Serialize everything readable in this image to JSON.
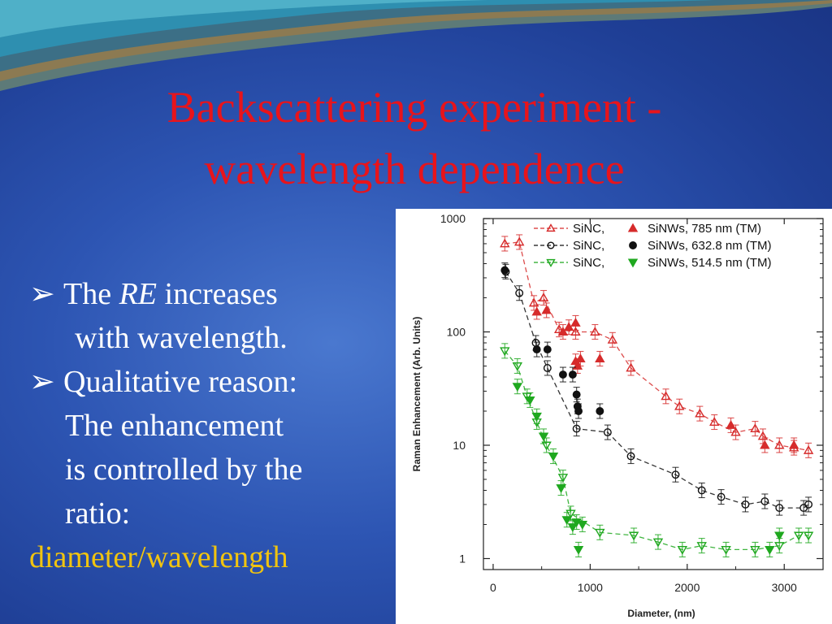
{
  "slide": {
    "title_line1": "Backscattering experiment -",
    "title_line2": "wavelength dependence",
    "bullets": {
      "b1_pre": "The ",
      "b1_em": "RE",
      "b1_post": " increases",
      "b1_cont": "with wavelength.",
      "b2": "Qualitative reason:",
      "b2_cont1": "The enhancement",
      "b2_cont2": "is controlled by the",
      "b2_cont3": "ratio:",
      "highlight": "diameter/wavelength"
    },
    "colors": {
      "title": "#e8141b",
      "highlight": "#f1c40f",
      "bullet_text": "#ffffff"
    }
  },
  "chart_data": {
    "type": "scatter",
    "ylog": true,
    "xlim": [
      -100,
      3400
    ],
    "ylim": [
      0.8,
      1000
    ],
    "xlabel": "Diameter, (nm)",
    "ylabel": "Raman Enhancement (Arb. Units)",
    "xticks": [
      0,
      1000,
      2000,
      3000
    ],
    "xtick_labels": [
      "0",
      "1000",
      "2000",
      "3000"
    ],
    "yticks": [
      1,
      10,
      100,
      1000
    ],
    "ytick_labels": [
      "1",
      "10",
      "100",
      "1000"
    ],
    "legend_position": "top-right",
    "legend": [
      {
        "sinc_label": "SiNC,",
        "sinw_label": "SiNWs, 785 nm (TM)",
        "color": "#d62b2b"
      },
      {
        "sinc_label": "SiNC,",
        "sinw_label": "SiNWs, 632.8 nm (TM)",
        "color": "#111111"
      },
      {
        "sinc_label": "SiNC,",
        "sinw_label": "SiNWs, 514.5 nm (TM)",
        "color": "#1fa81f"
      }
    ],
    "series": [
      {
        "marker": "triangle-up-open",
        "color": "#d62b2b",
        "dashed_line": true,
        "points": [
          [
            120,
            600
          ],
          [
            270,
            620
          ],
          [
            420,
            180
          ],
          [
            520,
            200
          ],
          [
            680,
            105
          ],
          [
            850,
            100
          ],
          [
            1050,
            100
          ],
          [
            1230,
            85
          ],
          [
            1420,
            48
          ],
          [
            1780,
            27
          ],
          [
            1920,
            22
          ],
          [
            2130,
            19
          ],
          [
            2280,
            16
          ],
          [
            2500,
            13
          ],
          [
            2700,
            14
          ],
          [
            2780,
            12
          ],
          [
            2950,
            10
          ],
          [
            3100,
            9.5
          ],
          [
            3250,
            9
          ]
        ]
      },
      {
        "marker": "triangle-up-filled",
        "color": "#d62b2b",
        "dashed_line": false,
        "points": [
          [
            450,
            150
          ],
          [
            550,
            155
          ],
          [
            720,
            100
          ],
          [
            780,
            110
          ],
          [
            850,
            120
          ],
          [
            850,
            55
          ],
          [
            870,
            50
          ],
          [
            900,
            58
          ],
          [
            1100,
            58
          ],
          [
            2450,
            15
          ],
          [
            2800,
            10
          ],
          [
            3100,
            10
          ]
        ]
      },
      {
        "marker": "circle-open",
        "color": "#111111",
        "dashed_line": true,
        "points": [
          [
            130,
            340
          ],
          [
            270,
            220
          ],
          [
            440,
            80
          ],
          [
            560,
            48
          ],
          [
            860,
            14
          ],
          [
            1180,
            13
          ],
          [
            1420,
            8
          ],
          [
            1880,
            5.5
          ],
          [
            2150,
            4
          ],
          [
            2350,
            3.5
          ],
          [
            2600,
            3
          ],
          [
            2800,
            3.2
          ],
          [
            2950,
            2.8
          ],
          [
            3200,
            2.8
          ],
          [
            3250,
            3
          ]
        ]
      },
      {
        "marker": "circle-filled",
        "color": "#111111",
        "dashed_line": false,
        "points": [
          [
            120,
            350
          ],
          [
            450,
            70
          ],
          [
            560,
            70
          ],
          [
            720,
            42
          ],
          [
            820,
            42
          ],
          [
            860,
            28
          ],
          [
            870,
            22
          ],
          [
            880,
            20
          ],
          [
            1100,
            20
          ]
        ]
      },
      {
        "marker": "triangle-down-open",
        "color": "#1fa81f",
        "dashed_line": true,
        "points": [
          [
            120,
            68
          ],
          [
            250,
            50
          ],
          [
            350,
            27
          ],
          [
            450,
            16
          ],
          [
            550,
            10
          ],
          [
            720,
            5.2
          ],
          [
            800,
            2.5
          ],
          [
            1100,
            1.7
          ],
          [
            1450,
            1.6
          ],
          [
            1700,
            1.4
          ],
          [
            1950,
            1.2
          ],
          [
            2150,
            1.3
          ],
          [
            2400,
            1.2
          ],
          [
            2700,
            1.2
          ],
          [
            2950,
            1.3
          ],
          [
            3150,
            1.6
          ],
          [
            3250,
            1.6
          ]
        ]
      },
      {
        "marker": "triangle-down-filled",
        "color": "#1fa81f",
        "dashed_line": false,
        "points": [
          [
            250,
            33
          ],
          [
            380,
            25
          ],
          [
            450,
            18
          ],
          [
            520,
            12
          ],
          [
            620,
            8
          ],
          [
            700,
            4.2
          ],
          [
            760,
            2.2
          ],
          [
            820,
            1.9
          ],
          [
            860,
            2.1
          ],
          [
            880,
            1.2
          ],
          [
            920,
            2
          ],
          [
            2850,
            1.2
          ],
          [
            2950,
            1.6
          ]
        ]
      }
    ]
  }
}
